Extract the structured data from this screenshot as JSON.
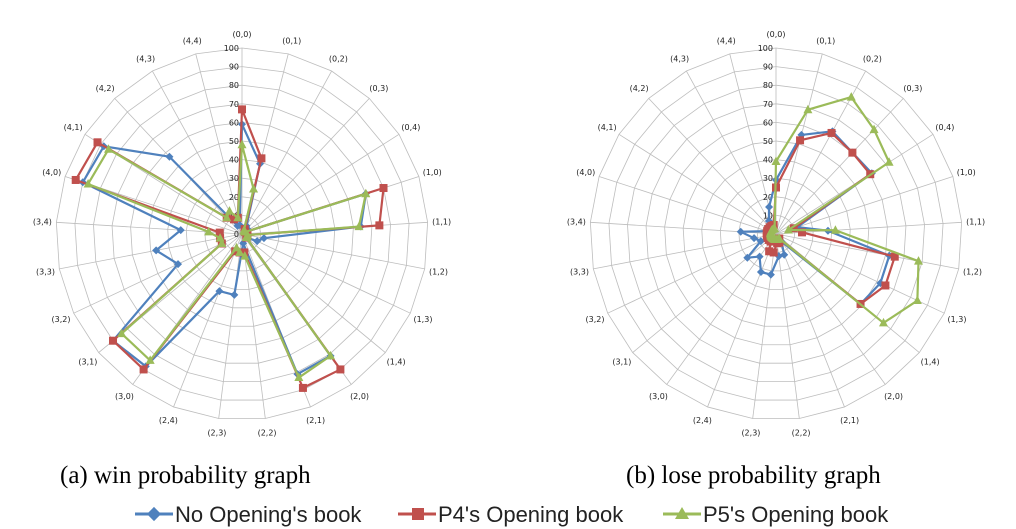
{
  "figure": {
    "captions": [
      "(a) win probability graph",
      "(b) lose probability graph"
    ]
  },
  "legend": [
    {
      "name": "No Opening's book",
      "color": "#4f81bd",
      "marker": "diamond"
    },
    {
      "name": "P4's Opening book",
      "color": "#c0504d",
      "marker": "square"
    },
    {
      "name": "P5's Opening book",
      "color": "#9bbb59",
      "marker": "triangle"
    }
  ],
  "chart_data": [
    {
      "type": "radar",
      "title": "",
      "caption": "(a) win probability graph",
      "categories": [
        "(0,0)",
        "(0,1)",
        "(0,2)",
        "(0,3)",
        "(0,4)",
        "(1,0)",
        "(1,1)",
        "(1,2)",
        "(1,3)",
        "(1,4)",
        "(2,0)",
        "(2,1)",
        "(2,2)",
        "(2,3)",
        "(2,4)",
        "(3,0)",
        "(3,1)",
        "(3,2)",
        "(3,3)",
        "(3,4)",
        "(4,0)",
        "(4,1)",
        "(4,2)",
        "(4,3)",
        "(4,4)"
      ],
      "rlim": [
        0,
        100
      ],
      "ticks": [
        0,
        10,
        20,
        30,
        40,
        50,
        60,
        70,
        80,
        90,
        100
      ],
      "grid": true,
      "legend_position": "bottom",
      "series": [
        {
          "name": "No Opening's book",
          "color": "#4f81bd",
          "marker": "diamond",
          "values": [
            59,
            39,
            5,
            4,
            2,
            70,
            64,
            12,
            9,
            3,
            81,
            81,
            5,
            33,
            33,
            88,
            90,
            38,
            47,
            33,
            90,
            88,
            57,
            5,
            5
          ]
        },
        {
          "name": "P4's Opening book",
          "color": "#c0504d",
          "marker": "square",
          "values": [
            67,
            42,
            3,
            2,
            2,
            80,
            74,
            3,
            3,
            3,
            90,
            89,
            10,
            10,
            10,
            90,
            90,
            12,
            12,
            12,
            94,
            92,
            12,
            9,
            9
          ]
        },
        {
          "name": "P5's Opening book",
          "color": "#9bbb59",
          "marker": "triangle",
          "values": [
            48,
            25,
            2,
            2,
            2,
            70,
            63,
            3,
            3,
            3,
            81,
            83,
            12,
            10,
            8,
            84,
            84,
            12,
            12,
            18,
            87,
            85,
            12,
            14,
            9
          ]
        }
      ]
    },
    {
      "type": "radar",
      "title": "",
      "caption": "(b) lose probability graph",
      "categories": [
        "(0,0)",
        "(0,1)",
        "(0,2)",
        "(0,3)",
        "(0,4)",
        "(1,0)",
        "(1,1)",
        "(1,2)",
        "(1,3)",
        "(1,4)",
        "(2,0)",
        "(2,1)",
        "(2,2)",
        "(2,3)",
        "(2,4)",
        "(3,0)",
        "(3,1)",
        "(3,2)",
        "(3,3)",
        "(3,4)",
        "(4,0)",
        "(4,1)",
        "(4,2)",
        "(4,3)",
        "(4,4)"
      ],
      "rlim": [
        0,
        100
      ],
      "ticks": [
        0,
        10,
        20,
        30,
        40,
        50,
        60,
        70,
        80,
        90,
        100
      ],
      "grid": true,
      "legend_position": "bottom",
      "series": [
        {
          "name": "No Opening's book",
          "color": "#4f81bd",
          "marker": "diamond",
          "values": [
            29,
            55,
            63,
            60,
            61,
            12,
            28,
            62,
            62,
            59,
            5,
            12,
            12,
            22,
            22,
            15,
            20,
            9,
            12,
            19,
            5,
            5,
            5,
            8,
            15
          ]
        },
        {
          "name": "P4's Opening book",
          "color": "#c0504d",
          "marker": "square",
          "values": [
            25,
            52,
            62,
            60,
            60,
            10,
            14,
            65,
            65,
            59,
            3,
            5,
            5,
            10,
            10,
            5,
            5,
            5,
            5,
            5,
            5,
            5,
            5,
            5,
            5
          ]
        },
        {
          "name": "P5's Opening book",
          "color": "#9bbb59",
          "marker": "triangle",
          "values": [
            39,
            69,
            84,
            77,
            72,
            7,
            32,
            78,
            84,
            75,
            3,
            3,
            3,
            3,
            3,
            3,
            3,
            3,
            3,
            3,
            3,
            3,
            3,
            3,
            3
          ]
        }
      ]
    }
  ]
}
